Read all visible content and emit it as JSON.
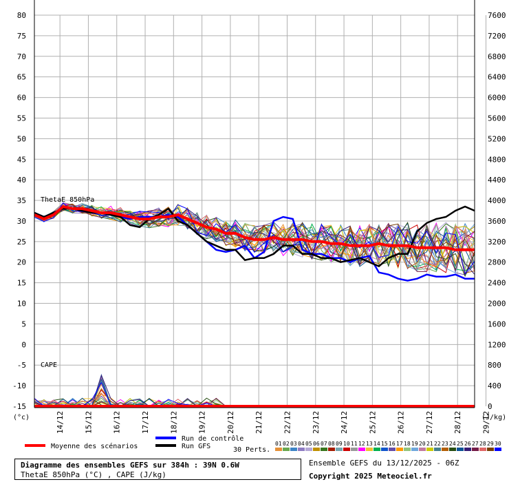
{
  "chart_data": {
    "type": "line",
    "x": [
      "14/12",
      "15/12",
      "16/12",
      "17/12",
      "18/12",
      "19/12",
      "20/12",
      "21/12",
      "22/12",
      "23/12",
      "24/12",
      "25/12",
      "26/12",
      "27/12",
      "28/12",
      "29/12"
    ],
    "y_left_ticks": [
      "80",
      "75",
      "70",
      "65",
      "60",
      "55",
      "50",
      "45",
      "40",
      "35",
      "30",
      "25",
      "20",
      "15",
      "10",
      "5",
      "0",
      "-5",
      "-10",
      "-15"
    ],
    "y_right_ticks": [
      "7600",
      "7200",
      "6800",
      "6400",
      "6000",
      "5600",
      "5200",
      "4800",
      "4400",
      "4000",
      "3600",
      "3200",
      "2800",
      "2400",
      "2000",
      "1600",
      "1200",
      "800",
      "400",
      "0"
    ],
    "ylim_left": [
      -15,
      80
    ],
    "ylim_right": [
      0,
      7600
    ],
    "y_left_unit": "(°c)",
    "y_right_unit": "(J/kg)",
    "panel_labels": [
      "ThetaE 850hPa",
      "CAPE"
    ],
    "theta_mean": [
      31.5,
      30.5,
      31.5,
      33.5,
      33,
      33,
      32.5,
      32,
      32,
      31.5,
      31,
      30.5,
      30.5,
      31,
      31,
      31.5,
      30.5,
      29.5,
      28.5,
      28,
      27,
      27,
      26,
      25.5,
      25.5,
      26,
      25.5,
      25.5,
      25.5,
      25,
      25,
      24.5,
      24.5,
      24,
      24,
      24,
      24.5,
      24,
      24,
      24,
      23.5,
      23.5,
      23.5,
      23.5,
      23,
      23,
      23
    ],
    "theta_control": [
      32,
      31,
      32,
      33,
      33,
      32.5,
      32,
      32,
      31.5,
      31,
      30.5,
      31,
      31,
      31,
      31.5,
      31,
      29,
      27,
      25,
      23,
      22.5,
      23,
      24,
      21,
      22.5,
      30,
      31,
      30.5,
      23,
      22,
      22,
      21,
      21,
      20,
      21,
      21.5,
      17.5,
      17,
      16,
      15.5,
      16,
      17,
      16.5,
      16.5,
      17,
      16,
      16
    ],
    "theta_gfs": [
      32,
      31,
      32,
      33,
      33,
      32.5,
      32,
      32,
      31.5,
      31,
      29,
      28.5,
      30.5,
      31.5,
      33,
      30,
      29,
      27,
      25,
      24,
      23,
      23,
      20.5,
      21,
      21,
      22,
      24,
      24,
      22,
      22,
      21,
      21,
      20,
      20.5,
      21,
      20,
      19,
      21,
      22,
      22,
      27.5,
      29.5,
      30.5,
      31,
      32.5,
      33.5,
      32.5
    ],
    "cape_control": [
      0,
      0,
      0,
      0,
      0,
      0,
      0,
      0,
      0,
      0,
      0,
      0,
      0,
      0,
      0,
      0,
      0,
      0,
      0,
      0,
      0,
      0,
      0,
      0,
      0,
      0,
      0,
      0,
      0,
      0,
      0,
      0,
      0,
      0,
      0,
      0,
      0,
      0,
      0,
      0,
      0,
      0,
      0,
      0,
      0,
      0,
      0
    ],
    "cape_mean": [
      0,
      0,
      0,
      0,
      0,
      0,
      0,
      0,
      0,
      0,
      0,
      0,
      0,
      0,
      0,
      0,
      0,
      0,
      0,
      0,
      0,
      0,
      0,
      0,
      0,
      0,
      0,
      0,
      0,
      0,
      0,
      0,
      0,
      0,
      0,
      0,
      0,
      0,
      0,
      0,
      0,
      0,
      0,
      0,
      0,
      0,
      0
    ],
    "legend": {
      "mean": "Moyenne des scénarios",
      "control": "Run de contrôle",
      "gfs": "Run GFS",
      "perts": "30 Perts."
    },
    "member_labels": [
      "01",
      "02",
      "03",
      "04",
      "05",
      "06",
      "07",
      "08",
      "09",
      "10",
      "11",
      "12",
      "13",
      "14",
      "15",
      "16",
      "17",
      "18",
      "19",
      "20",
      "21",
      "22",
      "23",
      "24",
      "25",
      "26",
      "27",
      "28",
      "29",
      "30"
    ],
    "member_colors": [
      "#e69138",
      "#6aa84f",
      "#3d85c6",
      "#8e7cc3",
      "#b4a7d6",
      "#bf9000",
      "#38761d",
      "#a61c00",
      "#76a5af",
      "#cc0000",
      "#999999",
      "#ff00ff",
      "#f1c232",
      "#00b050",
      "#1155cc",
      "#674ea7",
      "#ff9900",
      "#93c47d",
      "#6fa8dc",
      "#c27ba0",
      "#cccc00",
      "#45818e",
      "#b45f06",
      "#274e13",
      "#0b5394",
      "#351c75",
      "#741b47",
      "#e06666",
      "#783f04",
      "#0000ff"
    ],
    "colors": {
      "mean": "#ff0000",
      "control": "#0000ff",
      "gfs": "#000000",
      "grid": "#b0b0b0"
    }
  },
  "footer": {
    "title_line1": "Diagramme des ensembles GEFS sur 384h : 39N 0.6W",
    "title_line2": "ThetaE 850hPa (°C) , CAPE (J/kg)",
    "ensemble_line": "Ensemble GEFS du 13/12/2025 - 06Z",
    "copyright": "Copyright 2025 Meteociel.fr"
  }
}
